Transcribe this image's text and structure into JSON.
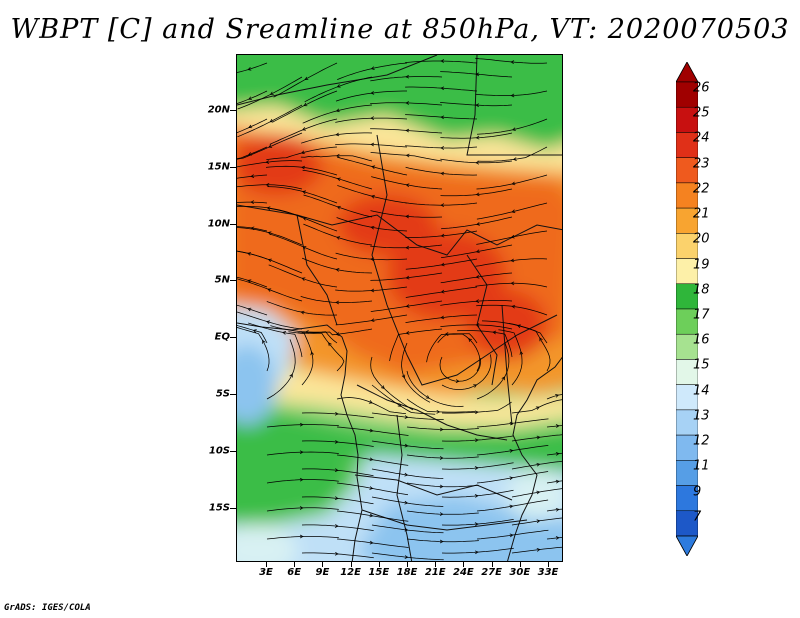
{
  "title": "WBPT [C] and Sreamline at 850hPa, VT: 2020070503",
  "footer": "GrADS: IGES/COLA",
  "lat_labels": [
    "20N",
    "15N",
    "10N",
    "5N",
    "EQ",
    "5S",
    "10S",
    "15S"
  ],
  "lon_labels": [
    "3E",
    "6E",
    "9E",
    "12E",
    "15E",
    "18E",
    "21E",
    "24E",
    "27E",
    "30E",
    "33E"
  ],
  "colorbar": {
    "labels": [
      "26",
      "25",
      "24",
      "23",
      "22",
      "21",
      "20",
      "19",
      "18",
      "17",
      "16",
      "15",
      "14",
      "13",
      "12",
      "11",
      "9",
      "7"
    ],
    "colors": [
      "#a00000",
      "#c81010",
      "#e03018",
      "#ef5a1e",
      "#f58220",
      "#f8a430",
      "#fbd26c",
      "#fdf0a8",
      "#2fb63a",
      "#6dcf5a",
      "#a6e290",
      "#e2f7e8",
      "#cfe9fb",
      "#a7d2f5",
      "#7fb9ef",
      "#569ee6",
      "#2d78de",
      "#1d58c8"
    ],
    "top_arrow_color": "#a00000",
    "bottom_arrow_color": "#2d7bde"
  },
  "map": {
    "lat_range": [
      -20,
      24
    ],
    "lon_range": [
      0,
      35
    ],
    "field_colors": {
      "green_dark": "#3bbd46",
      "green_light": "#8ed67a",
      "yellow": "#fbe69a",
      "orange": "#f3962a",
      "orange_red": "#ef6a1e",
      "red": "#e33a18",
      "blue_light": "#bfe0f7",
      "blue": "#8cc4ef",
      "cyan_pale": "#d8f1f3"
    }
  }
}
